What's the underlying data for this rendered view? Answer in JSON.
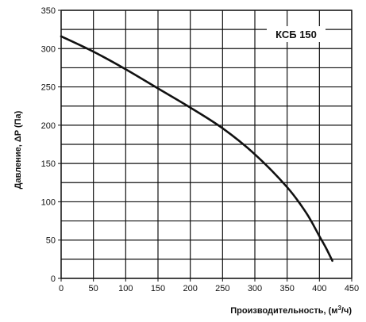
{
  "chart_data": {
    "type": "line",
    "title": "",
    "xlabel": "Производительность, (м",
    "xlabel_sup": "3",
    "xlabel_tail": "/ч)",
    "ylabel": "Давление, ΔP (Па)",
    "xlim": [
      0,
      450
    ],
    "ylim": [
      0,
      350
    ],
    "x_ticks": [
      0,
      50,
      100,
      150,
      200,
      250,
      300,
      350,
      400,
      450
    ],
    "y_ticks": [
      0,
      50,
      100,
      150,
      200,
      250,
      300,
      350
    ],
    "x_minor_step": 50,
    "y_minor_step": 25,
    "grid": true,
    "legend_position": "top-right",
    "series": [
      {
        "name": "КСБ 150",
        "color": "#111111",
        "x": [
          0,
          50,
          100,
          150,
          200,
          250,
          300,
          350,
          380,
          400,
          410,
          420
        ],
        "y": [
          316,
          296,
          273,
          248,
          223,
          196,
          162,
          119,
          85,
          55,
          40,
          23
        ]
      }
    ]
  }
}
